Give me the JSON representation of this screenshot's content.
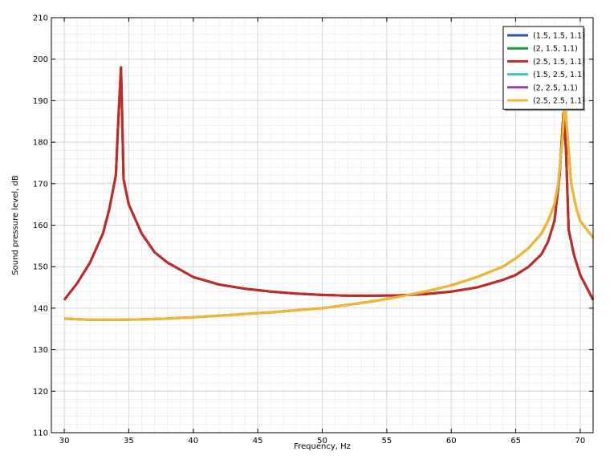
{
  "chart_data": {
    "type": "line",
    "title": "",
    "xlabel": "Frequency, Hz",
    "ylabel": "Sound pressure level, dB",
    "xlim": [
      29,
      71
    ],
    "ylim": [
      110,
      210
    ],
    "xticks": [
      30,
      35,
      40,
      45,
      50,
      55,
      60,
      65,
      70
    ],
    "yticks": [
      110,
      120,
      130,
      140,
      150,
      160,
      170,
      180,
      190,
      200,
      210
    ],
    "grid": true,
    "legend_position": "top-right",
    "series": [
      {
        "name": "(1.5, 1.5, 1.1)",
        "color": "#3050a8",
        "x": [
          30,
          31,
          32,
          33,
          33.5,
          34,
          34.2,
          34.4,
          34.6,
          35,
          36,
          37,
          38,
          40,
          42,
          44,
          46,
          48,
          50,
          52,
          54,
          56,
          58,
          60,
          62,
          64,
          65,
          66,
          67,
          67.5,
          68,
          68.4,
          68.7,
          68.9,
          69.1,
          69.5,
          70,
          70.5,
          71
        ],
        "y": [
          142,
          146,
          151,
          158,
          164,
          172,
          186,
          198,
          171,
          165,
          158,
          153.5,
          151,
          147.5,
          145.7,
          144.7,
          144,
          143.5,
          143.2,
          143,
          143,
          143.1,
          143.4,
          144,
          145,
          146.8,
          148,
          150,
          153,
          156,
          161,
          172,
          187,
          178,
          159,
          153,
          148,
          145,
          142
        ]
      },
      {
        "name": "(2, 1.5, 1.1)",
        "color": "#1a9a3a",
        "x": [
          30,
          31,
          32,
          33,
          33.5,
          34,
          34.2,
          34.4,
          34.6,
          35,
          36,
          37,
          38,
          40,
          42,
          44,
          46,
          48,
          50,
          52,
          54,
          56,
          58,
          60,
          62,
          64,
          65,
          66,
          67,
          67.5,
          68,
          68.4,
          68.7,
          68.9,
          69.1,
          69.5,
          70,
          70.5,
          71
        ],
        "y": [
          142,
          146,
          151,
          158,
          164,
          172,
          186,
          198,
          171,
          165,
          158,
          153.5,
          151,
          147.5,
          145.7,
          144.7,
          144,
          143.5,
          143.2,
          143,
          143,
          143.1,
          143.4,
          144,
          145,
          146.8,
          148,
          150,
          153,
          156,
          161,
          172,
          187,
          178,
          159,
          153,
          148,
          145,
          142
        ]
      },
      {
        "name": "(2.5, 1.5, 1.1)",
        "color": "#c62828",
        "x": [
          30,
          31,
          32,
          33,
          33.5,
          34,
          34.2,
          34.4,
          34.6,
          35,
          36,
          37,
          38,
          40,
          42,
          44,
          46,
          48,
          50,
          52,
          54,
          56,
          58,
          60,
          62,
          64,
          65,
          66,
          67,
          67.5,
          68,
          68.4,
          68.7,
          68.9,
          69.1,
          69.5,
          70,
          70.5,
          71
        ],
        "y": [
          142,
          146,
          151,
          158,
          164,
          172,
          186,
          198,
          171,
          165,
          158,
          153.5,
          151,
          147.5,
          145.7,
          144.7,
          144,
          143.5,
          143.2,
          143,
          143,
          143.1,
          143.4,
          144,
          145,
          146.8,
          148,
          150,
          153,
          156,
          161,
          172,
          187,
          178,
          159,
          153,
          148,
          145,
          142
        ]
      },
      {
        "name": "(1.5, 2.5, 1.1)",
        "color": "#3cc6c6",
        "x": [
          30,
          32,
          34,
          36,
          38,
          40,
          42,
          44,
          46,
          48,
          50,
          52,
          54,
          56,
          58,
          60,
          62,
          64,
          65,
          66,
          67,
          67.5,
          68,
          68.3,
          68.6,
          68.8,
          69,
          69.3,
          69.7,
          70,
          70.5,
          71
        ],
        "y": [
          137.5,
          137.2,
          137.2,
          137.3,
          137.5,
          137.8,
          138.2,
          138.6,
          139,
          139.5,
          140,
          140.8,
          141.7,
          142.8,
          144,
          145.5,
          147.5,
          150,
          152,
          154.5,
          158,
          161,
          165,
          170,
          180,
          190,
          182,
          170,
          164,
          161,
          159,
          157
        ]
      },
      {
        "name": "(2, 2.5, 1.1)",
        "color": "#9c3ca8",
        "x": [
          30,
          32,
          34,
          36,
          38,
          40,
          42,
          44,
          46,
          48,
          50,
          52,
          54,
          56,
          58,
          60,
          62,
          64,
          65,
          66,
          67,
          67.5,
          68,
          68.3,
          68.6,
          68.8,
          69,
          69.3,
          69.7,
          70,
          70.5,
          71
        ],
        "y": [
          137.5,
          137.2,
          137.2,
          137.3,
          137.5,
          137.8,
          138.2,
          138.6,
          139,
          139.5,
          140,
          140.8,
          141.7,
          142.8,
          144,
          145.5,
          147.5,
          150,
          152,
          154.5,
          158,
          161,
          165,
          170,
          180,
          190,
          182,
          170,
          164,
          161,
          159,
          157
        ]
      },
      {
        "name": "(2.5, 2.5, 1.1)",
        "color": "#f2b82a",
        "x": [
          30,
          32,
          34,
          36,
          38,
          40,
          42,
          44,
          46,
          48,
          50,
          52,
          54,
          56,
          58,
          60,
          62,
          64,
          65,
          66,
          67,
          67.5,
          68,
          68.3,
          68.6,
          68.8,
          69,
          69.3,
          69.7,
          70,
          70.5,
          71
        ],
        "y": [
          137.5,
          137.2,
          137.2,
          137.3,
          137.5,
          137.8,
          138.2,
          138.6,
          139,
          139.5,
          140,
          140.8,
          141.7,
          142.8,
          144,
          145.5,
          147.5,
          150,
          152,
          154.5,
          158,
          161,
          165,
          170,
          180,
          190,
          182,
          170,
          164,
          161,
          159,
          157
        ]
      }
    ]
  }
}
